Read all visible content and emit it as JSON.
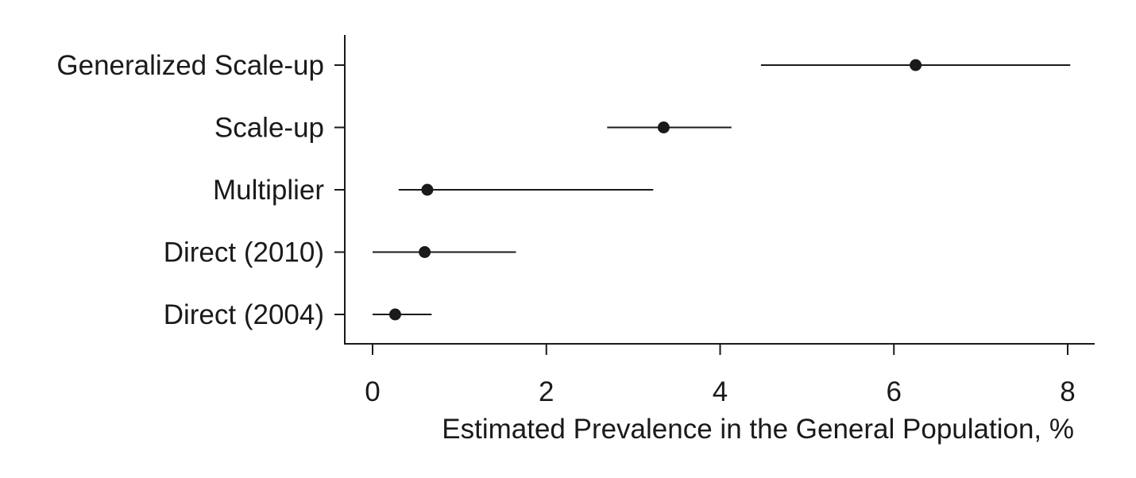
{
  "chart_data": {
    "type": "scatter",
    "subtype": "point-estimate with interval",
    "title": "",
    "xlabel": "Estimated Prevalence in the General Population, %",
    "ylabel": "",
    "xlim": [
      0,
      8
    ],
    "xticks": [
      0,
      2,
      4,
      6,
      8
    ],
    "grid": false,
    "categories": [
      "Generalized Scale-up",
      "Scale-up",
      "Multiplier",
      "Direct (2010)",
      "Direct (2004)"
    ],
    "estimates": [
      6.25,
      3.35,
      0.63,
      0.6,
      0.26
    ],
    "lower": [
      4.47,
      2.7,
      0.3,
      0.0,
      0.0
    ],
    "upper": [
      8.03,
      4.13,
      3.23,
      1.65,
      0.68
    ]
  }
}
